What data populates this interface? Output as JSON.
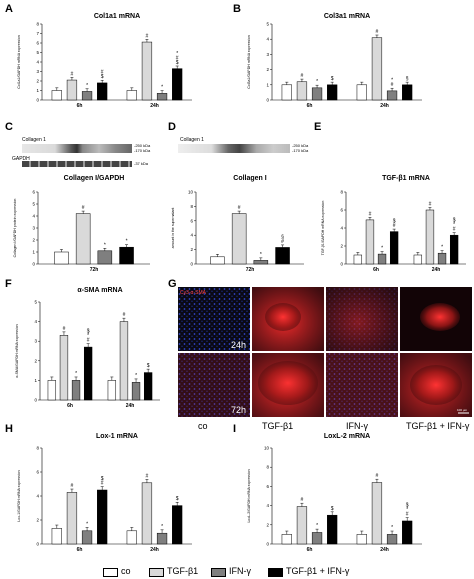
{
  "panels": {
    "A": {
      "letter": "A",
      "title": "Col1a1 mRNA"
    },
    "B": {
      "letter": "B",
      "title": "Col3a1 mRNA"
    },
    "C": {
      "letter": "C",
      "blot_title": "Collagen 1",
      "blot_bottom": "GAPDH",
      "kda_top1": "-250 kDa",
      "kda_top2": "-170 kDa",
      "kda_bottom": "-37 kDa",
      "title": "Collagen I/GAPDH"
    },
    "D": {
      "letter": "D",
      "blot_title": "Collagen 1",
      "kda_top1": "-250 kDa",
      "kda_top2": "-170 kDa",
      "title": "Collagen I"
    },
    "E": {
      "letter": "E",
      "title": "TGF-β1 mRNA"
    },
    "F": {
      "letter": "F",
      "title": "α-SMA mRNA"
    },
    "G": {
      "letter": "G",
      "stain_label": "Cy3-α-SMA",
      "time1": "24h",
      "time2": "72h",
      "scale": "100 µm",
      "col_labels": [
        "co",
        "TGF-β1",
        "IFN-γ",
        "TGF-β1 + IFN-γ"
      ]
    },
    "H": {
      "letter": "H",
      "title": "Lox-1 mRNA"
    },
    "I": {
      "letter": "I",
      "title": "LoxL-2 mRNA"
    }
  },
  "legend": {
    "items": [
      {
        "label": "co",
        "color": "#ffffff"
      },
      {
        "label": "TGF-β1",
        "color": "#d9d9d9"
      },
      {
        "label": "IFN-γ",
        "color": "#7f7f7f"
      },
      {
        "label": "TGF-β1 + IFN-γ",
        "color": "#000000"
      }
    ]
  },
  "chart_data": [
    {
      "id": "A",
      "type": "bar",
      "categories": [
        "6h",
        "24h"
      ],
      "ylim": [
        0,
        8
      ],
      "ticks": [
        0,
        1,
        2,
        3,
        4,
        5,
        6,
        7,
        8
      ],
      "ylabel": "Col1a1/GAPDH mRNA expression",
      "series": [
        {
          "name": "co",
          "values": [
            1,
            1
          ]
        },
        {
          "name": "TGF-β1",
          "values": [
            2.1,
            6.1
          ]
        },
        {
          "name": "IFN-γ",
          "values": [
            0.9,
            0.7
          ]
        },
        {
          "name": "TGF-β1 + IFN-γ",
          "values": [
            1.8,
            3.3
          ]
        }
      ],
      "annotations": [
        [
          "",
          "#",
          "*",
          "#\n$"
        ],
        [
          "",
          "#",
          "*",
          "*\n#\n$"
        ]
      ]
    },
    {
      "id": "B",
      "type": "bar",
      "categories": [
        "6h",
        "24h"
      ],
      "ylim": [
        0,
        5
      ],
      "ticks": [
        0,
        1,
        2,
        3,
        4,
        5
      ],
      "ylabel": "Col3a1/GAPDH mRNA expression",
      "series": [
        {
          "name": "co",
          "values": [
            1,
            1
          ]
        },
        {
          "name": "TGF-β1",
          "values": [
            1.2,
            4.1
          ]
        },
        {
          "name": "IFN-γ",
          "values": [
            0.8,
            0.6
          ]
        },
        {
          "name": "TGF-β1 + IFN-γ",
          "values": [
            1.0,
            1.0
          ]
        }
      ],
      "annotations": [
        [
          "",
          "#",
          "*",
          "$"
        ],
        [
          "",
          "#",
          "*\n#",
          "§"
        ]
      ]
    },
    {
      "id": "C",
      "type": "bar",
      "categories": [
        "72h"
      ],
      "ylim": [
        0,
        6
      ],
      "ticks": [
        0,
        1,
        2,
        3,
        4,
        5,
        6
      ],
      "ylabel": "Collagen I/GAPDH protein expression",
      "series": [
        {
          "name": "co",
          "values": [
            1
          ]
        },
        {
          "name": "TGF-β1",
          "values": [
            4.2
          ]
        },
        {
          "name": "IFN-γ",
          "values": [
            1.1
          ]
        },
        {
          "name": "TGF-β1 + IFN-γ",
          "values": [
            1.4
          ]
        }
      ],
      "annotations": [
        [
          "",
          "#",
          "*",
          "*"
        ]
      ]
    },
    {
      "id": "D",
      "type": "bar",
      "categories": [
        "72h"
      ],
      "ylim": [
        0,
        10
      ],
      "ticks": [
        0,
        2,
        4,
        6,
        8,
        10
      ],
      "ylabel": "amount in the supernatant",
      "series": [
        {
          "name": "co",
          "values": [
            1
          ]
        },
        {
          "name": "TGF-β1",
          "values": [
            7.0
          ]
        },
        {
          "name": "IFN-γ",
          "values": [
            0.5
          ]
        },
        {
          "name": "TGF-β1 + IFN-γ",
          "values": [
            2.3
          ]
        }
      ],
      "annotations": [
        [
          "",
          "#",
          "*",
          "§\n#"
        ]
      ]
    },
    {
      "id": "E",
      "type": "bar",
      "categories": [
        "6h",
        "24h"
      ],
      "ylim": [
        0,
        8
      ],
      "ticks": [
        0,
        2,
        4,
        6,
        8
      ],
      "ylabel": "TGF-β1/GAPDH mRNA expression",
      "series": [
        {
          "name": "co",
          "values": [
            1,
            1
          ]
        },
        {
          "name": "TGF-β1",
          "values": [
            4.9,
            6.0
          ]
        },
        {
          "name": "IFN-γ",
          "values": [
            1.1,
            1.2
          ]
        },
        {
          "name": "TGF-β1 + IFN-γ",
          "values": [
            3.6,
            3.2
          ]
        }
      ],
      "annotations": [
        [
          "",
          "#",
          "*",
          "$\n#"
        ],
        [
          "",
          "#",
          "*",
          "$\n*\n#"
        ]
      ]
    },
    {
      "id": "F",
      "type": "bar",
      "categories": [
        "6h",
        "24h"
      ],
      "ylim": [
        0,
        5
      ],
      "ticks": [
        0,
        1,
        2,
        3,
        4,
        5
      ],
      "ylabel": "α-SMA/GAPDH mRNA expression",
      "series": [
        {
          "name": "co",
          "values": [
            1,
            1
          ]
        },
        {
          "name": "TGF-β1",
          "values": [
            3.3,
            4.0
          ]
        },
        {
          "name": "IFN-γ",
          "values": [
            1.0,
            0.9
          ]
        },
        {
          "name": "TGF-β1 + IFN-γ",
          "values": [
            2.7,
            1.4
          ]
        }
      ],
      "annotations": [
        [
          "",
          "#",
          "*",
          "$\n*\n#"
        ],
        [
          "",
          "#",
          "*",
          "$"
        ]
      ]
    },
    {
      "id": "H",
      "type": "bar",
      "categories": [
        "6h",
        "24h"
      ],
      "ylim": [
        0,
        8
      ],
      "ticks": [
        0,
        2,
        4,
        6,
        8
      ],
      "ylabel": "Lox-1/GAPDH mRNA expression",
      "series": [
        {
          "name": "co",
          "values": [
            1.3,
            1.1
          ]
        },
        {
          "name": "TGF-β1",
          "values": [
            4.3,
            5.1
          ]
        },
        {
          "name": "IFN-γ",
          "values": [
            1.1,
            0.9
          ]
        },
        {
          "name": "TGF-β1 + IFN-γ",
          "values": [
            4.5,
            3.2
          ]
        }
      ],
      "annotations": [
        [
          "",
          "#",
          "*",
          "$\n#"
        ],
        [
          "",
          "#",
          "*",
          "$"
        ]
      ]
    },
    {
      "id": "I",
      "type": "bar",
      "categories": [
        "6h",
        "24h"
      ],
      "ylim": [
        0,
        10
      ],
      "ticks": [
        0,
        2,
        4,
        6,
        8,
        10
      ],
      "ylabel": "LoxL-2/GAPDH mRNA expression",
      "series": [
        {
          "name": "co",
          "values": [
            1,
            1
          ]
        },
        {
          "name": "TGF-β1",
          "values": [
            3.9,
            6.4
          ]
        },
        {
          "name": "IFN-γ",
          "values": [
            1.2,
            1.0
          ]
        },
        {
          "name": "TGF-β1 + IFN-γ",
          "values": [
            3.0,
            2.4
          ]
        }
      ],
      "annotations": [
        [
          "",
          "#",
          "*",
          "$"
        ],
        [
          "",
          "#",
          "*",
          "$\n*\n#"
        ]
      ]
    }
  ]
}
